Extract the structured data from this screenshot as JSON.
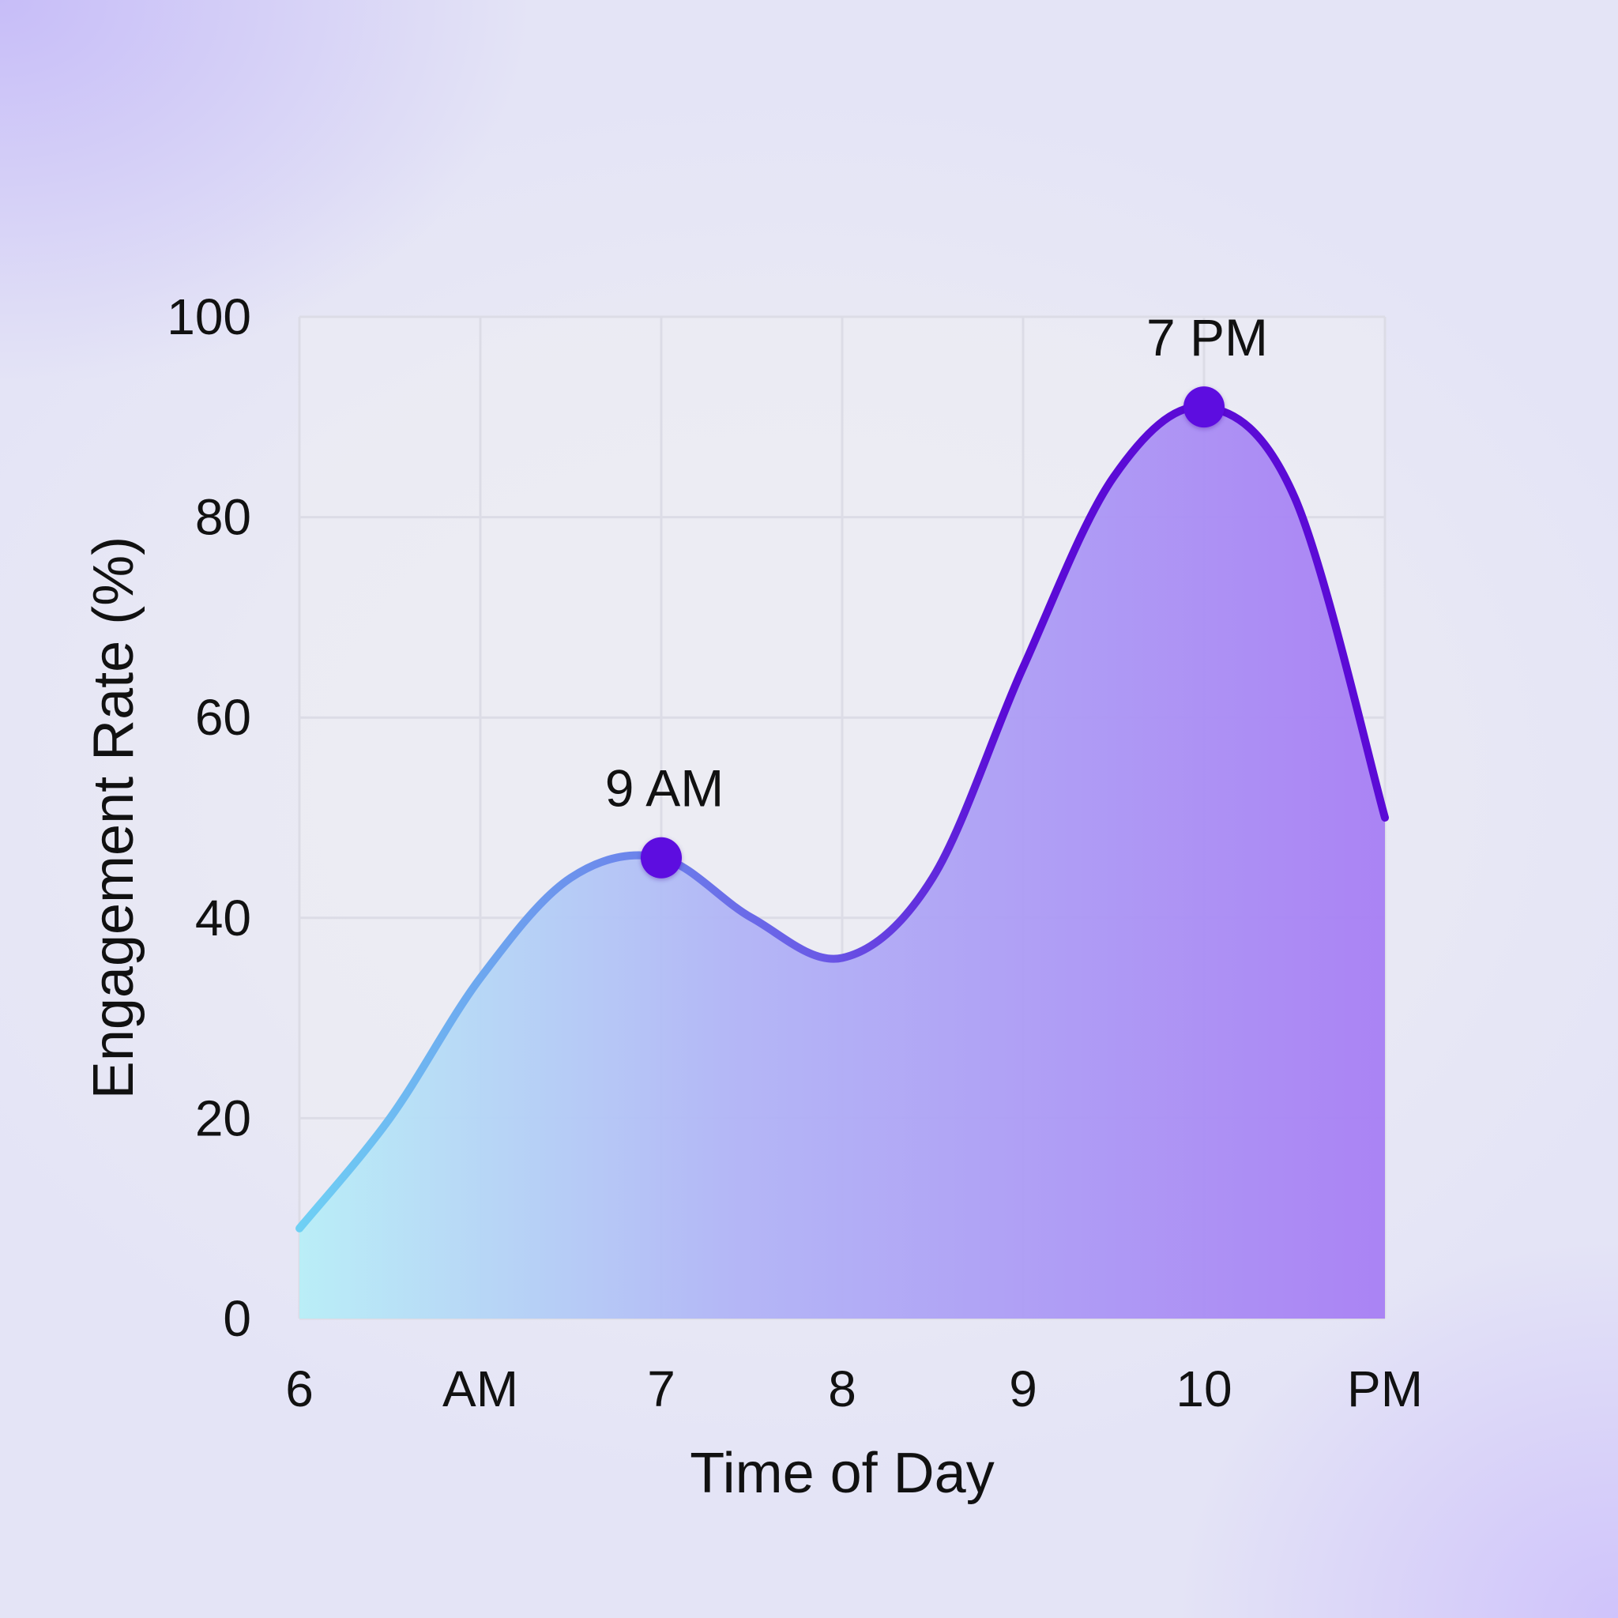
{
  "chart_data": {
    "type": "area",
    "title": "",
    "xlabel": "Time of Day",
    "ylabel": "Engagement Rate (%)",
    "ylim": [
      0,
      100
    ],
    "y_ticks": [
      "0",
      "20",
      "40",
      "60",
      "80",
      "100"
    ],
    "x_tick_labels": [
      "6",
      "AM",
      "7",
      "8",
      "9",
      "10",
      "PM"
    ],
    "grid": true,
    "series": [
      {
        "x": [
          0,
          0.5,
          1,
          1.5,
          2,
          2.5,
          3,
          3.5,
          4,
          4.5,
          5,
          5.5,
          6
        ],
        "values": [
          9,
          20,
          34,
          44,
          46,
          40,
          36,
          44,
          65,
          84,
          91,
          82,
          50
        ]
      }
    ],
    "annotations": [
      {
        "label": "9 AM",
        "x": 2,
        "y": 46
      },
      {
        "label": "7 PM",
        "x": 5,
        "y": 91
      }
    ],
    "colors": {
      "line_start": "#6fd0f4",
      "line_mid": "#6a5ae6",
      "line_end": "#5b0bd6",
      "fill_start": "#b7eef7",
      "fill_mid": "#b1b4f6",
      "fill_end": "#a77ef4",
      "marker": "#5d07e0",
      "grid": "#dcdce6"
    }
  }
}
